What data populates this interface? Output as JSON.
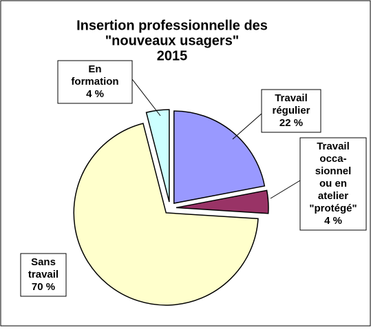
{
  "chart_data": {
    "type": "pie",
    "title": [
      "Insertion professionnelle des",
      "\"nouveaux usagers\"",
      "2015"
    ],
    "categories": [
      [
        "Travail",
        "régulier"
      ],
      [
        "Travail",
        "occa-",
        "sionnel",
        "ou en",
        "atelier",
        "\"protégé\""
      ],
      [
        "Sans",
        "travail"
      ],
      [
        "En",
        "formation"
      ]
    ],
    "values": [
      22,
      4,
      70,
      4
    ],
    "value_labels": [
      "22 %",
      "4 %",
      "70 %",
      "4 %"
    ],
    "colors": [
      "#9999ff",
      "#993366",
      "#ffffcc",
      "#ccffff"
    ]
  }
}
